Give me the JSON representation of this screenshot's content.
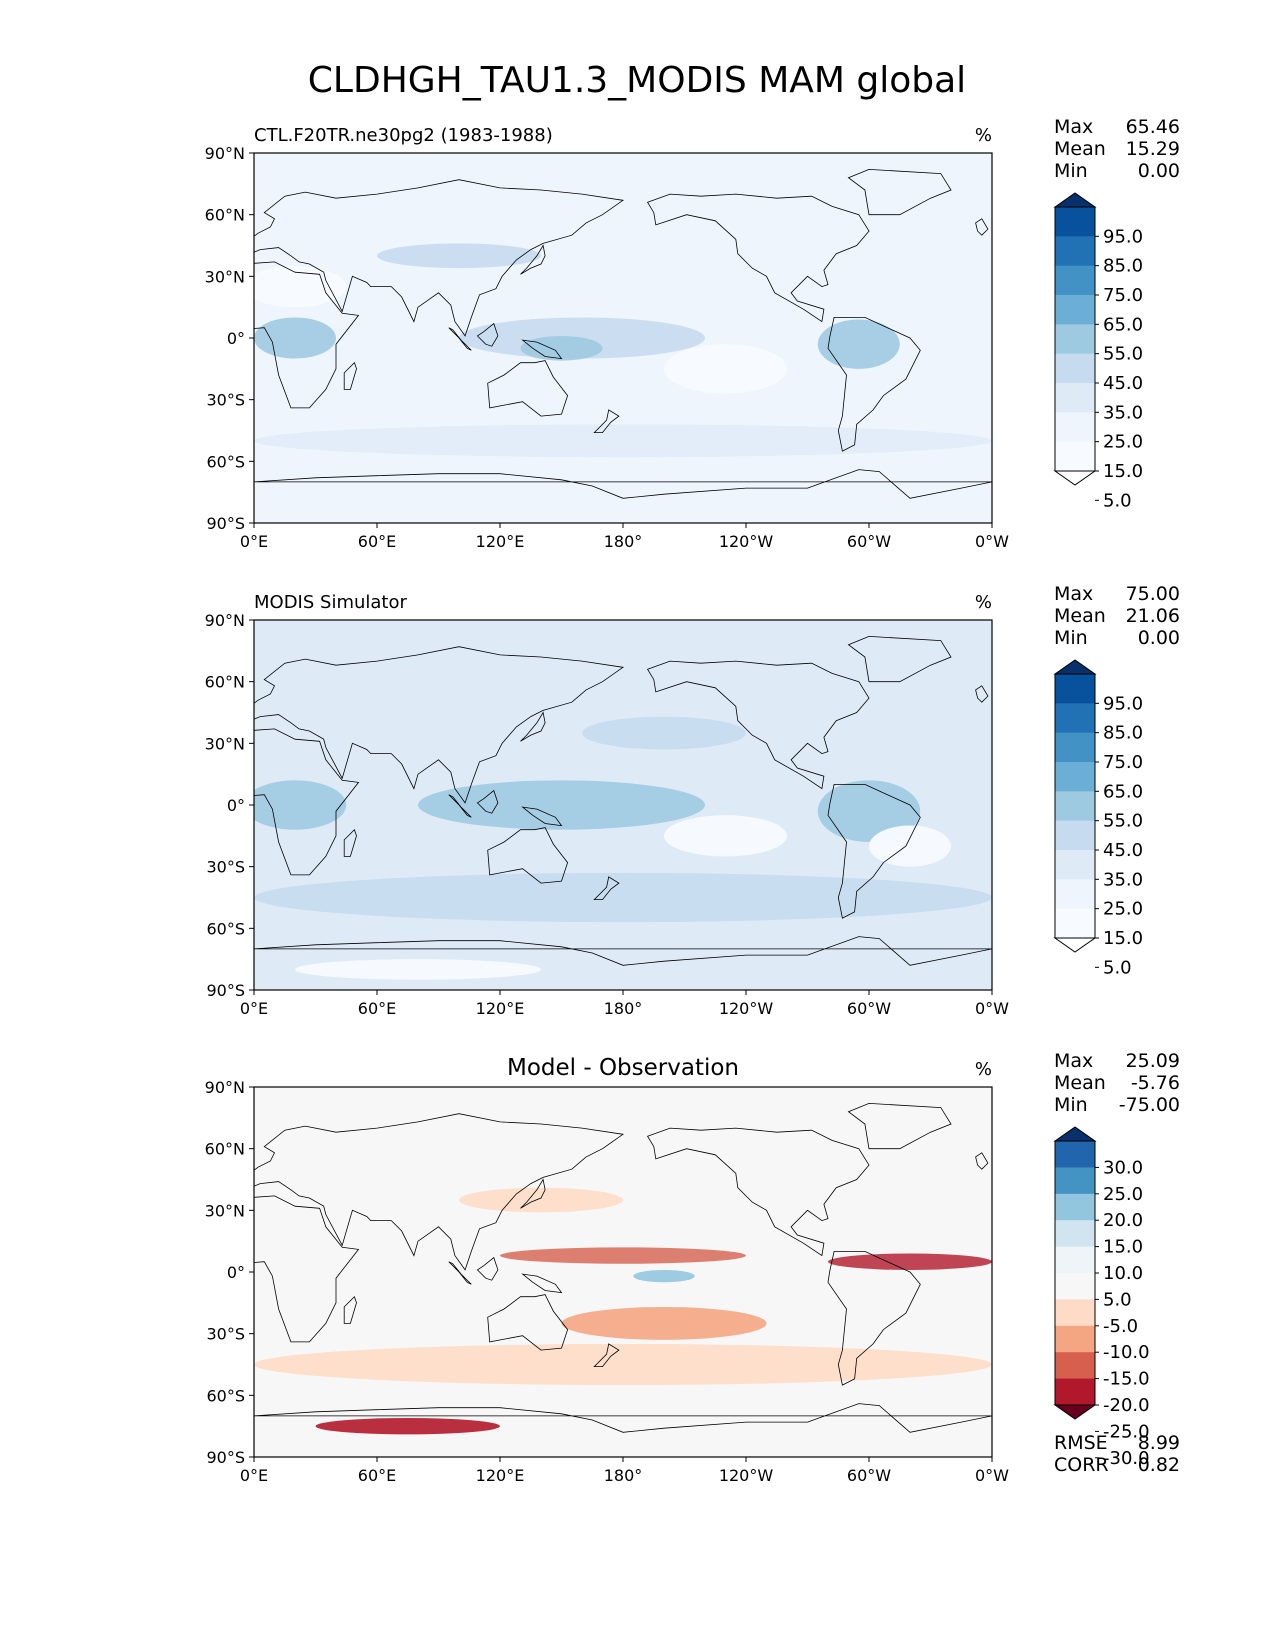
{
  "title": "CLDHGH_TAU1.3_MODIS MAM global",
  "lat_tick_labels": [
    "90°N",
    "60°N",
    "30°N",
    "0°",
    "30°S",
    "60°S",
    "90°S"
  ],
  "lon_tick_labels": [
    "0°E",
    "60°E",
    "120°E",
    "180°",
    "120°W",
    "60°W",
    "0°W"
  ],
  "panels": [
    {
      "left_title": "CTL.F20TR.ne30pg2 (1983-1988)",
      "center_title": "",
      "units": "%",
      "stats": [
        {
          "label": "Max",
          "value": "65.46"
        },
        {
          "label": "Mean",
          "value": "15.29"
        },
        {
          "label": "Min",
          "value": "0.00"
        }
      ],
      "colorbar": {
        "labels": [
          "95.0",
          "85.0",
          "75.0",
          "65.0",
          "55.0",
          "45.0",
          "35.0",
          "25.0",
          "15.0",
          "5.0"
        ],
        "colors": [
          "#08306b",
          "#08519c",
          "#2171b5",
          "#4292c6",
          "#6baed6",
          "#9ecae1",
          "#c6dbef",
          "#deebf7",
          "#eef5fc",
          "#f7fbff",
          "#ffffff"
        ]
      },
      "field_base_color": "#eef5fc",
      "footer_stats": []
    },
    {
      "left_title": "MODIS Simulator",
      "center_title": "",
      "units": "%",
      "stats": [
        {
          "label": "Max",
          "value": "75.00"
        },
        {
          "label": "Mean",
          "value": "21.06"
        },
        {
          "label": "Min",
          "value": "0.00"
        }
      ],
      "colorbar": {
        "labels": [
          "95.0",
          "85.0",
          "75.0",
          "65.0",
          "55.0",
          "45.0",
          "35.0",
          "25.0",
          "15.0",
          "5.0"
        ],
        "colors": [
          "#08306b",
          "#08519c",
          "#2171b5",
          "#4292c6",
          "#6baed6",
          "#9ecae1",
          "#c6dbef",
          "#deebf7",
          "#eef5fc",
          "#f7fbff",
          "#ffffff"
        ]
      },
      "field_base_color": "#deebf7",
      "footer_stats": []
    },
    {
      "left_title": "",
      "center_title": "Model - Observation",
      "units": "%",
      "stats": [
        {
          "label": "Max",
          "value": "25.09"
        },
        {
          "label": "Mean",
          "value": "-5.76"
        },
        {
          "label": "Min",
          "value": "-75.00"
        }
      ],
      "colorbar": {
        "labels": [
          "30.0",
          "25.0",
          "20.0",
          "15.0",
          "10.0",
          "5.0",
          "-5.0",
          "-10.0",
          "-15.0",
          "-20.0",
          "-25.0",
          "-30.0"
        ],
        "colors": [
          "#08306b",
          "#2166ac",
          "#4393c3",
          "#92c5de",
          "#d1e5f0",
          "#eef4f8",
          "#f7f7f7",
          "#fddbc7",
          "#f4a582",
          "#d6604d",
          "#b2182b",
          "#67001f"
        ]
      },
      "field_base_color": "#f7f7f7",
      "footer_stats": [
        {
          "label": "RMSE",
          "value": "8.99"
        },
        {
          "label": "CORR",
          "value": "0.82"
        }
      ]
    }
  ]
}
